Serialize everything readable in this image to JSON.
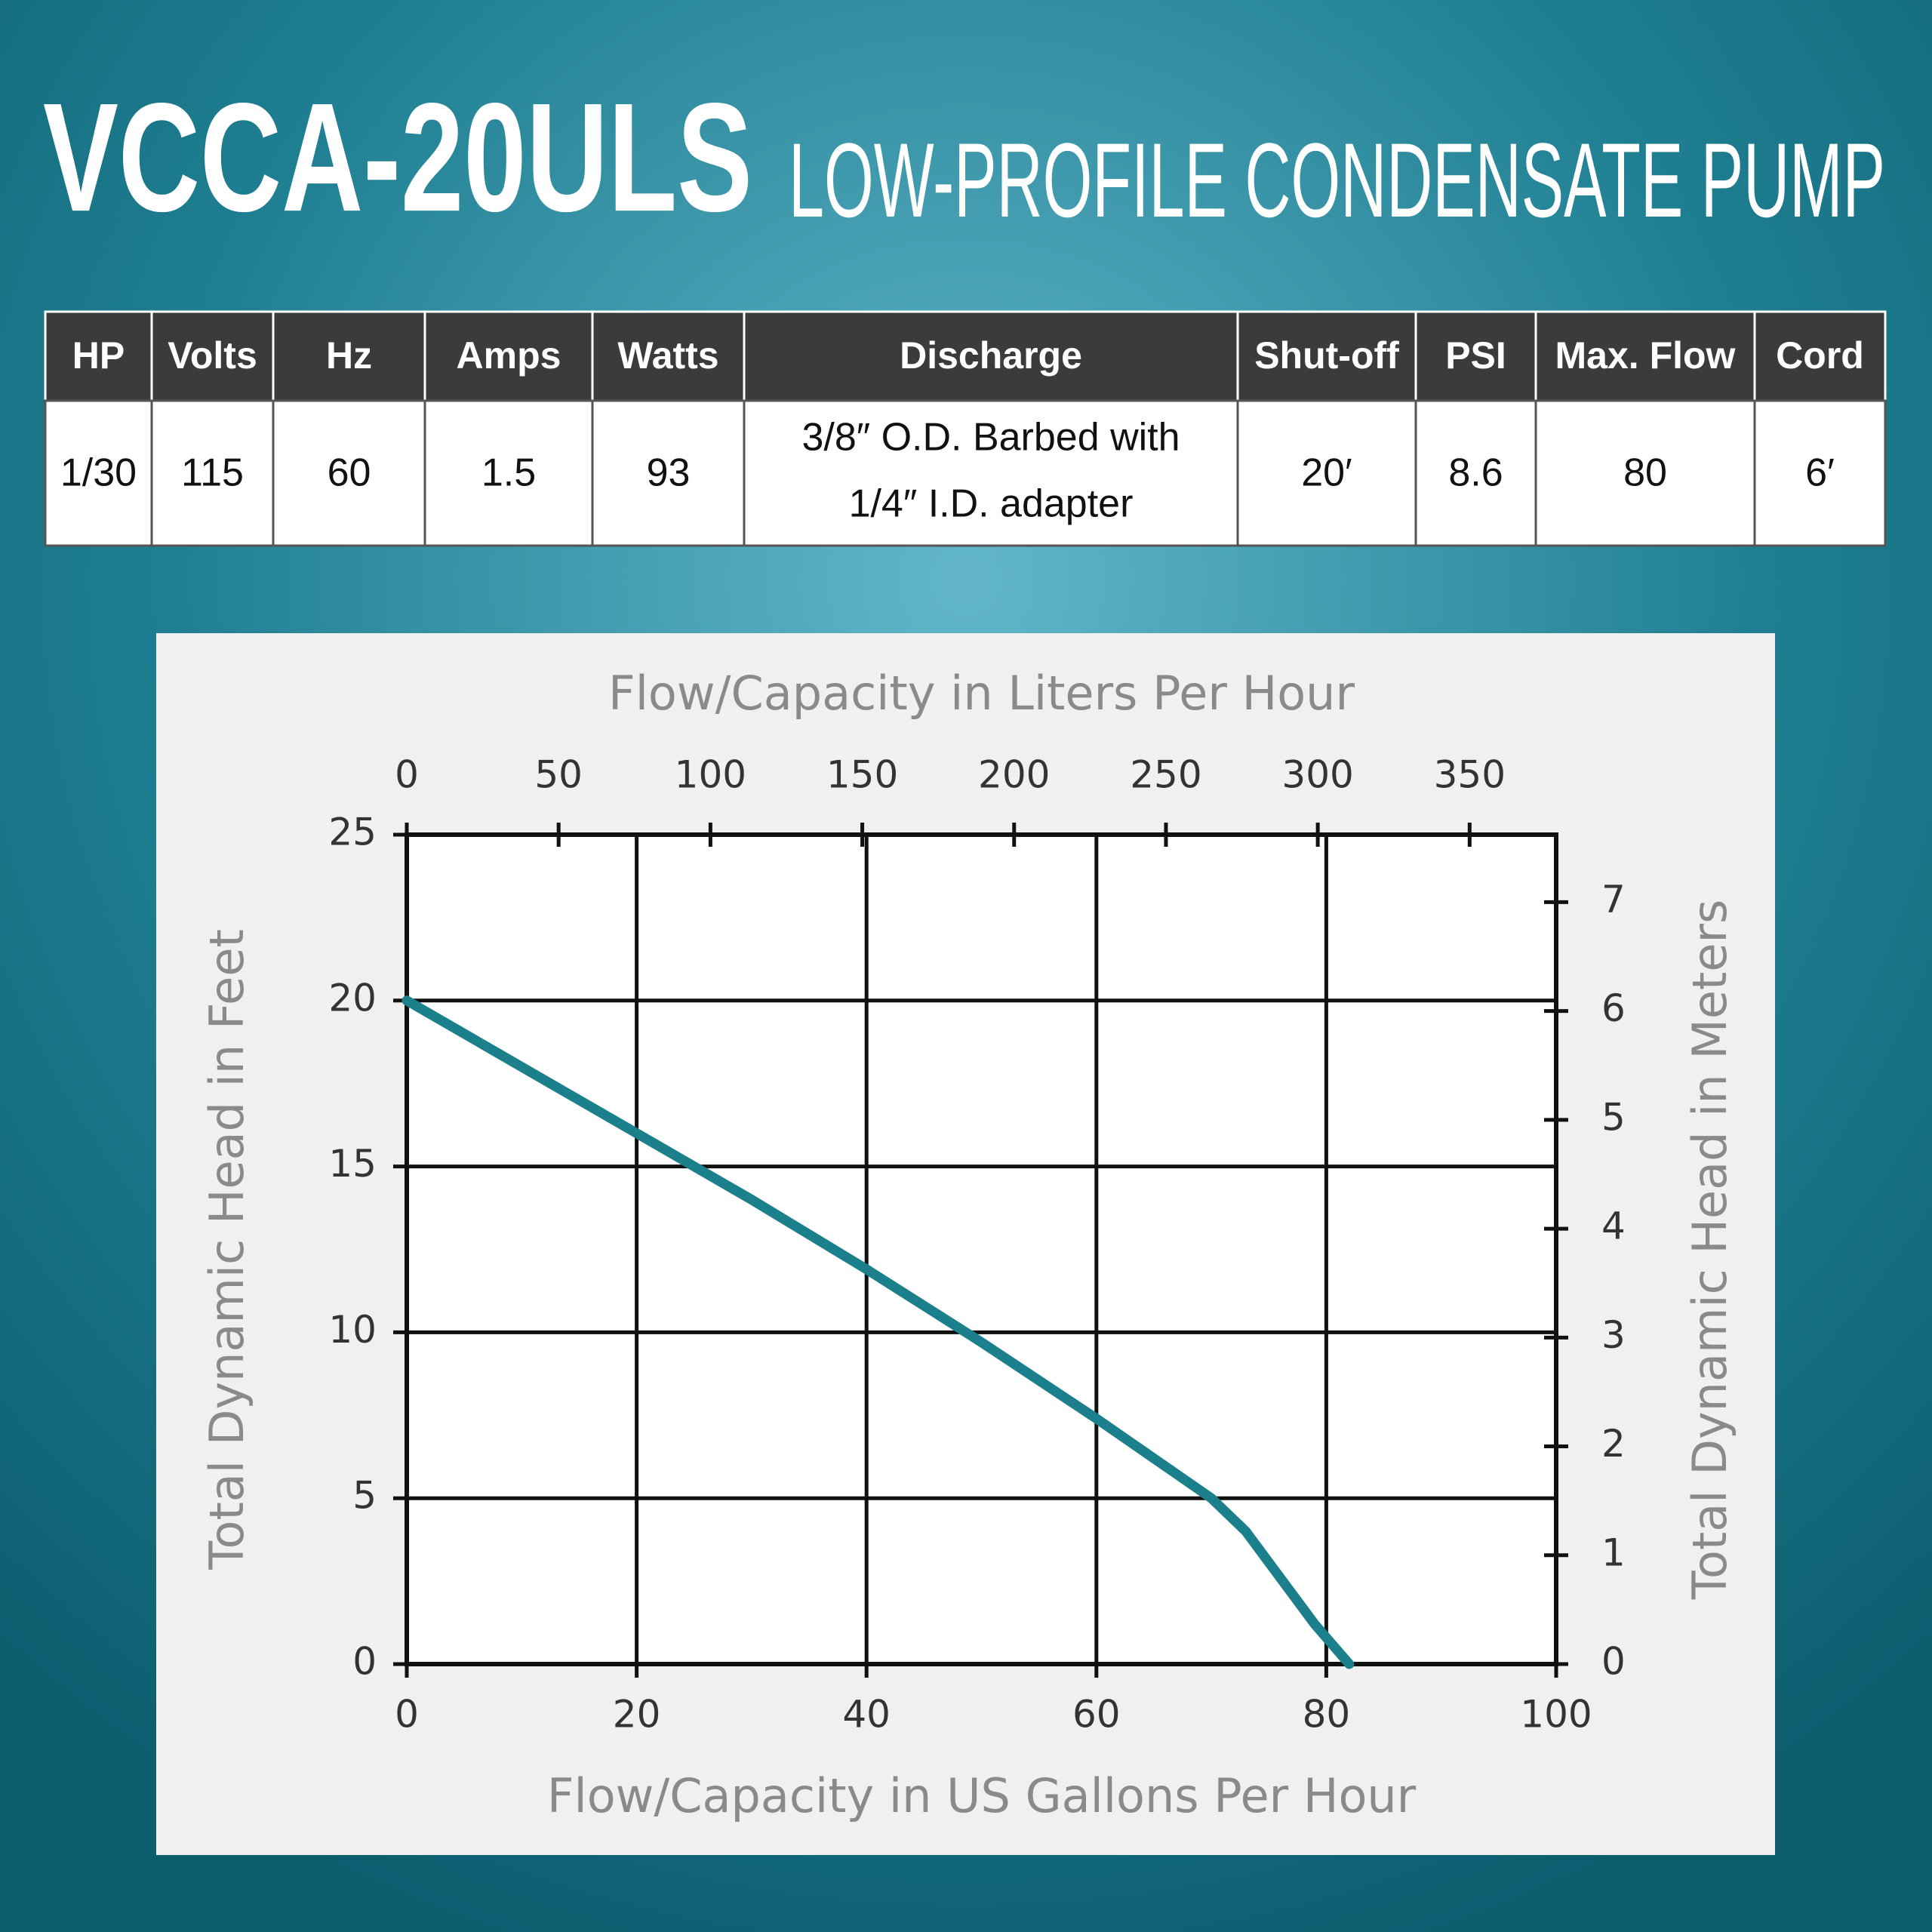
{
  "header": {
    "title": "VCCA-20ULS",
    "subtitle": "LOW-PROFILE CONDENSATE PUMP"
  },
  "table": {
    "columns": [
      "HP",
      "Volts",
      "Hz",
      "Amps",
      "Watts",
      "Discharge",
      "Shut-off",
      "PSI",
      "Max. Flow",
      "Cord"
    ],
    "rows": [
      [
        "1/30",
        "115",
        "60",
        "1.5",
        "93",
        [
          "3/8″ O.D. Barbed with",
          "1/4″ I.D. adapter"
        ],
        "20′",
        "8.6",
        "80",
        "6′"
      ]
    ]
  },
  "chart_data": {
    "type": "line",
    "xlabel": "Flow/Capacity in US Gallons Per Hour",
    "ylabel": "Total Dynamic Head in Feet",
    "x2label": "Flow/Capacity in Liters Per Hour",
    "y2label": "Total Dynamic Head in Meters",
    "x": [
      0,
      10,
      20,
      30,
      40,
      50,
      60,
      65,
      70,
      73,
      76,
      79,
      82
    ],
    "values": [
      20,
      18,
      16,
      14,
      11.9,
      9.7,
      7.4,
      6.2,
      5,
      4,
      2.6,
      1.2,
      0
    ],
    "color": "#1b7f8c",
    "xlim": [
      0,
      100
    ],
    "xticks": [
      0,
      20,
      40,
      60,
      80,
      100
    ],
    "ylim": [
      0,
      25
    ],
    "yticks": [
      0,
      5,
      10,
      15,
      20,
      25
    ],
    "x2lim": [
      0,
      378.5
    ],
    "x2ticks": [
      0,
      50,
      100,
      150,
      200,
      250,
      300,
      350
    ],
    "y2lim": [
      0,
      7.62
    ],
    "y2ticks": [
      0,
      1,
      2,
      3,
      4,
      5,
      6,
      7
    ],
    "grid": true
  }
}
